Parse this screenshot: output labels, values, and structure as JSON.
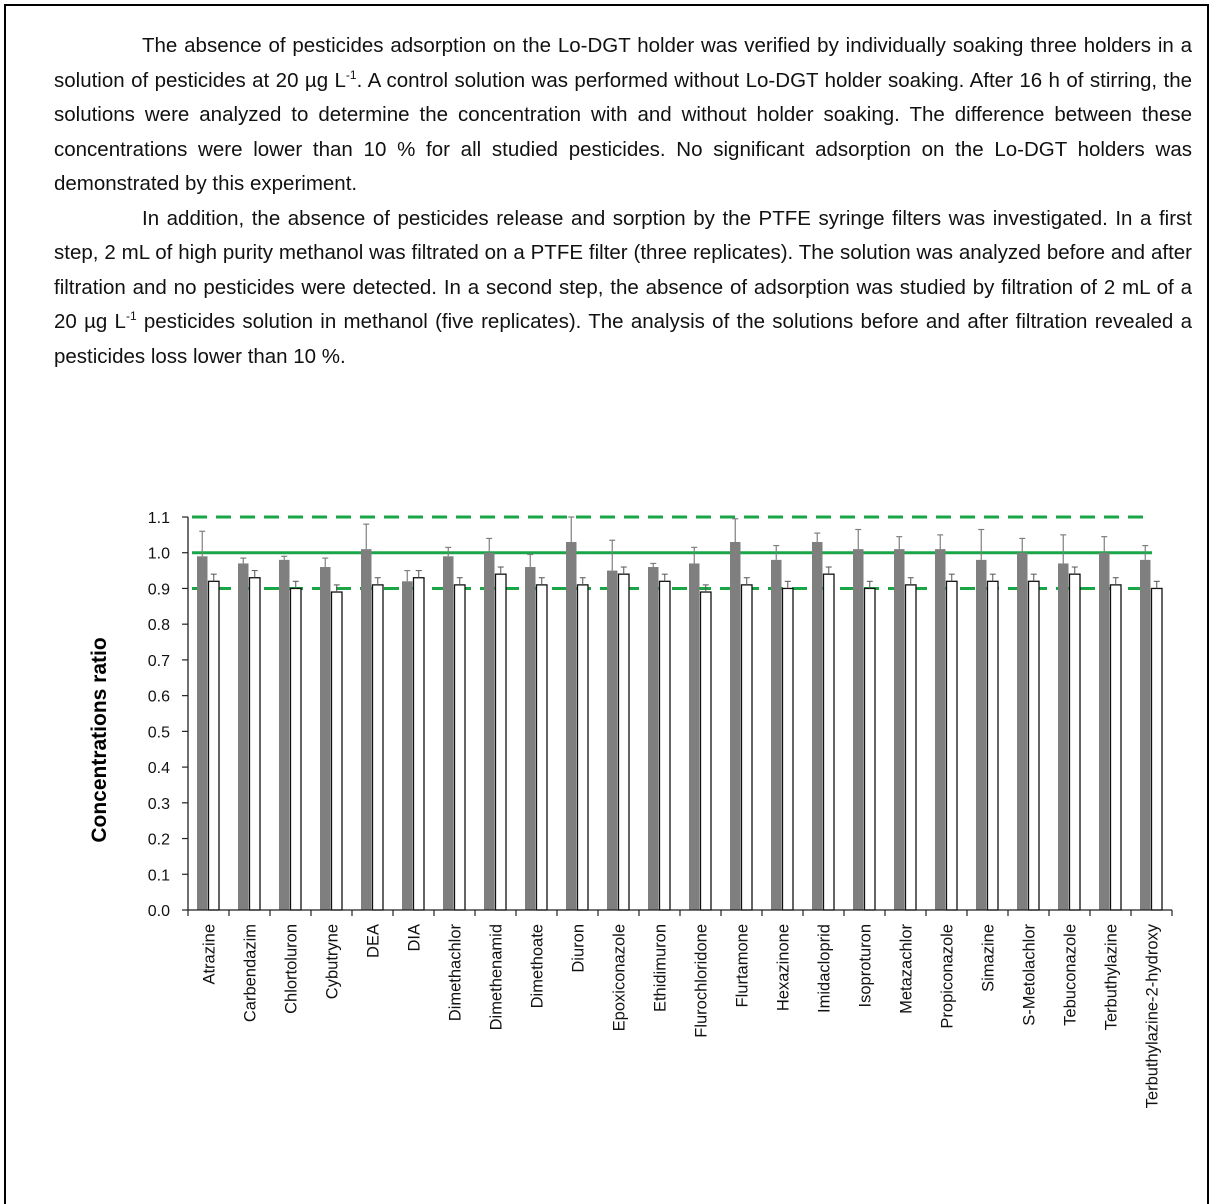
{
  "paragraphs": [
    {
      "parts": [
        "The absence of pesticides adsorption on the Lo-DGT holder was verified by individually soaking three holders in a solution of pesticides at 20 µg L",
        "-1",
        ". A control solution was performed without Lo-DGT holder soaking. After 16 h of stirring, the solutions were analyzed to determine the concentration with and without holder soaking. The difference between these concentrations were lower than 10 % for all studied pesticides. No significant adsorption on the Lo-DGT holders was demonstrated by this experiment."
      ]
    },
    {
      "parts": [
        "In addition, the absence of pesticides release and sorption by the PTFE syringe filters was investigated. In a first step, 2 mL of high purity methanol was filtrated on a PTFE filter (three replicates). The solution was analyzed before and after filtration and no pesticides were detected. In a second step, the absence of adsorption was studied by filtration of 2 mL of a 20 µg L",
        "-1",
        " pesticides solution in methanol (five replicates). The analysis of the solutions before and after filtration revealed a pesticides loss lower than 10 %."
      ]
    }
  ],
  "chart_data": {
    "type": "bar",
    "ylabel": "Concentrations ratio",
    "xlabel": "",
    "title": "",
    "ylim": [
      0,
      1.1
    ],
    "yticks": [
      "0.0",
      "0.1",
      "0.2",
      "0.3",
      "0.4",
      "0.5",
      "0.6",
      "0.7",
      "0.8",
      "0.9",
      "1.0",
      "1.1"
    ],
    "categories": [
      "Atrazine",
      "Carbendazim",
      "Chlortoluron",
      "Cybutryne",
      "DEA",
      "DIA",
      "Dimethachlor",
      "Dimethenamid",
      "Dimethoate",
      "Diuron",
      "Epoxiconazole",
      "Ethidimuron",
      "Flurochloridone",
      "Flurtamone",
      "Hexazinone",
      "Imidacloprid",
      "Isoproturon",
      "Metazachlor",
      "Propiconazole",
      "Simazine",
      "S-Metolachlor",
      "Tebuconazole",
      "Terbuthylazine",
      "Terbuthylazine-2-hydroxy"
    ],
    "series": [
      {
        "color": "#7f7f7f",
        "values": [
          0.99,
          0.97,
          0.98,
          0.96,
          1.01,
          0.92,
          0.99,
          1.0,
          0.96,
          1.03,
          0.95,
          0.96,
          0.97,
          1.03,
          0.98,
          1.03,
          1.01,
          1.01,
          1.01,
          0.98,
          1.0,
          0.97,
          1.0,
          0.98
        ],
        "errors": [
          0.07,
          0.015,
          0.01,
          0.025,
          0.07,
          0.03,
          0.025,
          0.04,
          0.035,
          0.07,
          0.085,
          0.01,
          0.045,
          0.065,
          0.04,
          0.025,
          0.055,
          0.035,
          0.04,
          0.085,
          0.04,
          0.08,
          0.045,
          0.04
        ]
      },
      {
        "color": "#ffffff",
        "values": [
          0.92,
          0.93,
          0.9,
          0.89,
          0.91,
          0.93,
          0.91,
          0.94,
          0.91,
          0.91,
          0.94,
          0.92,
          0.89,
          0.91,
          0.9,
          0.94,
          0.9,
          0.91,
          0.92,
          0.92,
          0.92,
          0.94,
          0.91,
          0.9
        ]
      }
    ],
    "reference_lines": [
      {
        "value": 1.1,
        "style": "dashed",
        "color": "#1aa646"
      },
      {
        "value": 1.0,
        "style": "solid",
        "color": "#1aa646"
      },
      {
        "value": 0.9,
        "style": "dashed",
        "color": "#1aa646"
      }
    ],
    "grid": false,
    "legend": "none"
  }
}
